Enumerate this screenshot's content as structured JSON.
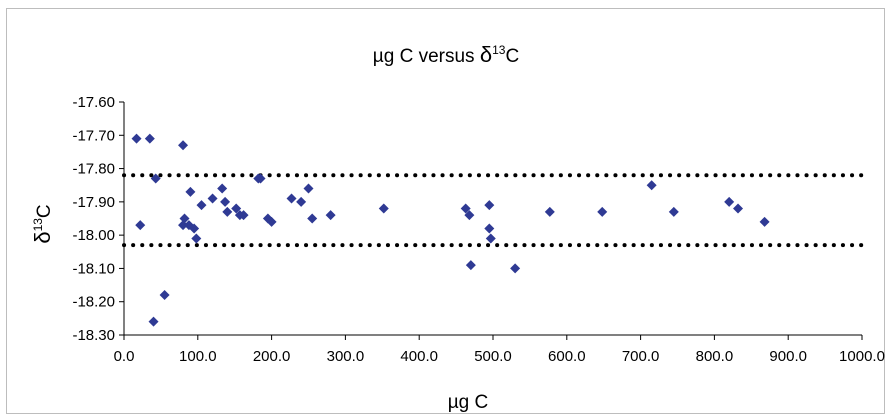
{
  "chart_data": {
    "type": "scatter",
    "title": {
      "main": "µg C versus ",
      "delta": "δ",
      "sup": "13",
      "tail": "C"
    },
    "xlabel": "µg C",
    "ylabel": {
      "delta": "δ",
      "sup": "13",
      "tail": "C"
    },
    "xlim": [
      0,
      1000
    ],
    "ylim": [
      -18.3,
      -17.6
    ],
    "x_ticks": [
      "0.0",
      "100.0",
      "200.0",
      "300.0",
      "400.0",
      "500.0",
      "600.0",
      "700.0",
      "800.0",
      "900.0",
      "1000.0"
    ],
    "y_ticks": [
      "-17.60",
      "-17.70",
      "-17.80",
      "-17.90",
      "-18.00",
      "-18.10",
      "-18.20",
      "-18.30"
    ],
    "reference_lines": [
      -17.82,
      -18.03
    ],
    "grid": false,
    "legend": "none",
    "marker_color": "#2f3a94",
    "reference_line_color": "#000000",
    "points": [
      [
        17,
        -17.71
      ],
      [
        22,
        -17.97
      ],
      [
        35,
        -17.71
      ],
      [
        43,
        -17.83
      ],
      [
        40,
        -18.26
      ],
      [
        55,
        -18.18
      ],
      [
        80,
        -17.73
      ],
      [
        82,
        -17.95
      ],
      [
        80,
        -17.97
      ],
      [
        88,
        -17.97
      ],
      [
        90,
        -17.87
      ],
      [
        95,
        -17.98
      ],
      [
        98,
        -18.01
      ],
      [
        105,
        -17.91
      ],
      [
        120,
        -17.89
      ],
      [
        133,
        -17.86
      ],
      [
        137,
        -17.9
      ],
      [
        140,
        -17.93
      ],
      [
        152,
        -17.92
      ],
      [
        157,
        -17.94
      ],
      [
        162,
        -17.94
      ],
      [
        182,
        -17.83
      ],
      [
        185,
        -17.83
      ],
      [
        195,
        -17.95
      ],
      [
        200,
        -17.96
      ],
      [
        227,
        -17.89
      ],
      [
        240,
        -17.9
      ],
      [
        250,
        -17.86
      ],
      [
        255,
        -17.95
      ],
      [
        280,
        -17.94
      ],
      [
        352,
        -17.92
      ],
      [
        463,
        -17.92
      ],
      [
        468,
        -17.94
      ],
      [
        470,
        -18.09
      ],
      [
        495,
        -17.91
      ],
      [
        495,
        -17.98
      ],
      [
        497,
        -18.01
      ],
      [
        530,
        -18.1
      ],
      [
        577,
        -17.93
      ],
      [
        648,
        -17.93
      ],
      [
        715,
        -17.85
      ],
      [
        745,
        -17.93
      ],
      [
        820,
        -17.9
      ],
      [
        832,
        -17.92
      ],
      [
        868,
        -17.96
      ]
    ]
  }
}
